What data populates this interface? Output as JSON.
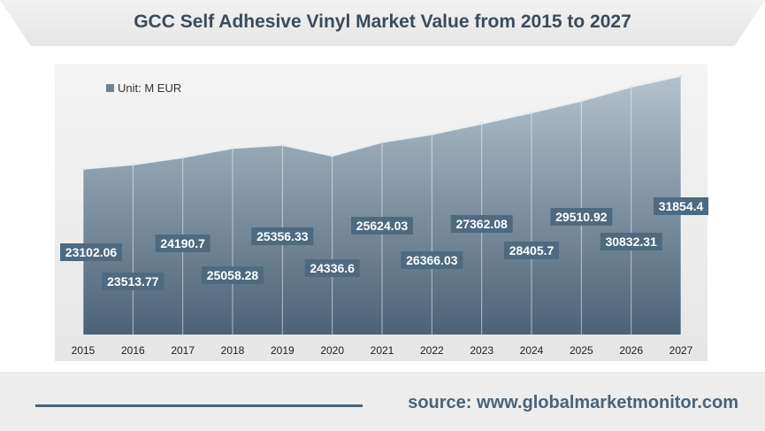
{
  "title": "GCC Self Adhesive Vinyl Market Value from 2015 to 2027",
  "source": "source: www.globalmarketmonitor.com",
  "colors": {
    "area_top": "#b4c2cc",
    "area_bottom": "#4b6277",
    "label_bg": "#4e6a80",
    "label_text": "#ffffff",
    "title_text": "#3b4b5b"
  },
  "chart_data": {
    "type": "area",
    "title": "GCC Self Adhesive Vinyl Market Value from 2015 to 2027",
    "legend": "Unit: M EUR",
    "categories": [
      "2015",
      "2016",
      "2017",
      "2018",
      "2019",
      "2020",
      "2021",
      "2022",
      "2023",
      "2024",
      "2025",
      "2026",
      "2027"
    ],
    "series": [
      {
        "name": "Unit: M EUR",
        "values": [
          23102.06,
          23513.77,
          24190.7,
          25058.28,
          25356.33,
          24336.6,
          25624.03,
          26366.03,
          27362.08,
          28405.7,
          29510.92,
          30832.31,
          31854.4
        ]
      }
    ],
    "data_labels": [
      "23102.06",
      "23513.77",
      "24190.7",
      "25058.28",
      "25356.33",
      "24336.6",
      "25624.03",
      "26366.03",
      "27362.08",
      "28405.7",
      "29510.92",
      "30832.31",
      "31854.4"
    ],
    "ylim": [
      0,
      35000
    ],
    "grid": false,
    "legend_position": "top-left"
  }
}
